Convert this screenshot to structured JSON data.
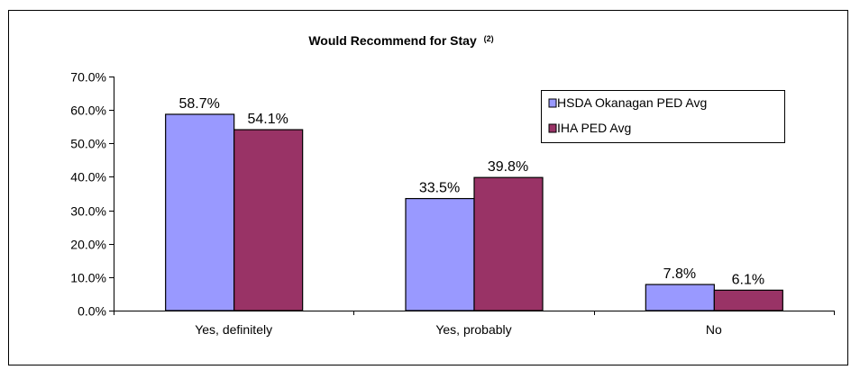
{
  "chart_data": {
    "type": "bar",
    "title": "Would Recommend for Stay",
    "title_superscript": "(2)",
    "categories": [
      "Yes, definitely",
      "Yes, probably",
      "No"
    ],
    "series": [
      {
        "name": "HSDA Okanagan PED Avg",
        "values": [
          58.7,
          33.5,
          7.8
        ],
        "labels": [
          "58.7%",
          "33.5%",
          "7.8%"
        ],
        "color": "#9999ff"
      },
      {
        "name": "IHA PED Avg",
        "values": [
          54.1,
          39.8,
          6.1
        ],
        "labels": [
          "54.1%",
          "39.8%",
          "6.1%"
        ],
        "color": "#993366"
      }
    ],
    "yticks": [
      {
        "value": 0,
        "label": "0.0%"
      },
      {
        "value": 10,
        "label": "10.0%"
      },
      {
        "value": 20,
        "label": "20.0%"
      },
      {
        "value": 30,
        "label": "30.0%"
      },
      {
        "value": 40,
        "label": "40.0%"
      },
      {
        "value": 50,
        "label": "50.0%"
      },
      {
        "value": 60,
        "label": "60.0%"
      },
      {
        "value": 70,
        "label": "70.0%"
      }
    ],
    "ylim": [
      0,
      70
    ],
    "xlabel": "",
    "ylabel": "",
    "grid": false,
    "legend_position": "top-right"
  }
}
